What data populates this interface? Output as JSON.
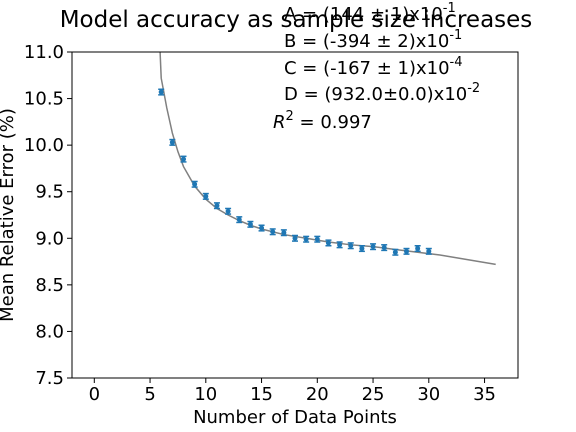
{
  "chart_data": {
    "type": "scatter",
    "title": "Model accuracy as sample size increases",
    "xlabel": "Number of Data Points",
    "ylabel": "Mean Relative Error (%)",
    "xlim": [
      -2,
      38
    ],
    "ylim": [
      7.5,
      11.0
    ],
    "x_ticks": [
      0,
      5,
      10,
      15,
      20,
      25,
      30,
      35
    ],
    "y_ticks": [
      7.5,
      8.0,
      8.5,
      9.0,
      9.5,
      10.0,
      10.5,
      11.0
    ],
    "x_tick_labels": [
      "0",
      "5",
      "10",
      "15",
      "20",
      "25",
      "30",
      "35"
    ],
    "y_tick_labels": [
      "7.5",
      "8.0",
      "8.5",
      "9.0",
      "9.5",
      "10.0",
      "10.5",
      "11.0"
    ],
    "grid": false,
    "series": [
      {
        "kind": "errorbar-points",
        "color": "#1f77b4",
        "x": [
          6,
          7,
          8,
          9,
          10,
          11,
          12,
          13,
          14,
          15,
          16,
          17,
          18,
          19,
          20,
          21,
          22,
          23,
          24,
          25,
          26,
          27,
          28,
          29,
          30
        ],
        "y": [
          10.57,
          10.03,
          9.85,
          9.58,
          9.45,
          9.35,
          9.29,
          9.2,
          9.15,
          9.11,
          9.07,
          9.06,
          9.0,
          8.99,
          8.99,
          8.95,
          8.93,
          8.92,
          8.89,
          8.91,
          8.9,
          8.85,
          8.86,
          8.89,
          8.86
        ],
        "yerr": [
          0.03,
          0.03,
          0.03,
          0.03,
          0.03,
          0.03,
          0.03,
          0.03,
          0.03,
          0.03,
          0.03,
          0.03,
          0.03,
          0.03,
          0.03,
          0.03,
          0.03,
          0.03,
          0.03,
          0.03,
          0.03,
          0.03,
          0.03,
          0.03,
          0.03
        ]
      },
      {
        "kind": "fit-line",
        "color": "#808080",
        "x": [
          5.9,
          6,
          6.5,
          7,
          7.5,
          8,
          9,
          10,
          11,
          12,
          13,
          14,
          15,
          17,
          19,
          21,
          23,
          25,
          27,
          29,
          31,
          33,
          35,
          36
        ],
        "y": [
          11.0,
          10.72,
          10.4,
          10.13,
          9.93,
          9.77,
          9.56,
          9.42,
          9.32,
          9.25,
          9.19,
          9.14,
          9.1,
          9.04,
          9.0,
          8.96,
          8.93,
          8.91,
          8.88,
          8.85,
          8.82,
          8.78,
          8.74,
          8.72
        ]
      }
    ],
    "annotations": {
      "A": "A = (144 ± 1)x10",
      "A_exp": "-1",
      "B": "B = (-394 ± 2)x10",
      "B_exp": "-1",
      "C": "C = (-167 ± 1)x10",
      "C_exp": "-4",
      "D": "D = (932.0±0.0)x10",
      "D_exp": "-2",
      "r2_base": "R",
      "r2_exp": "2",
      "r2_value": " = 0.997"
    }
  }
}
